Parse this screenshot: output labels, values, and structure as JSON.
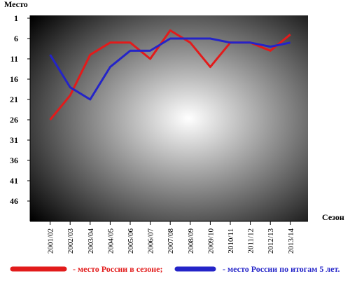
{
  "chart_data": {
    "type": "line",
    "y_label": "Место",
    "x_label": "Сезон",
    "categories": [
      "2001/02",
      "2002/03",
      "2003/04",
      "2004/05",
      "2005/06",
      "2006/07",
      "2007/08",
      "2008/09",
      "2009/10",
      "2010/11",
      "2011/12",
      "2012/13",
      "2013/14"
    ],
    "series": [
      {
        "name": "- место России в сезоне;",
        "color": "#e21b1b",
        "values": [
          26,
          20,
          10,
          7,
          7,
          11,
          4,
          7,
          13,
          7,
          7,
          9,
          5
        ]
      },
      {
        "name": "- место России по итогам 5 лет.",
        "color": "#2424c8",
        "values": [
          10,
          18,
          21,
          13,
          9,
          9,
          6,
          6,
          6,
          7,
          7,
          8,
          7
        ]
      }
    ],
    "ylim": [
      1,
      51
    ],
    "y_inverted": true,
    "yticks": [
      1,
      6,
      11,
      16,
      21,
      26,
      31,
      36,
      41,
      46
    ]
  }
}
